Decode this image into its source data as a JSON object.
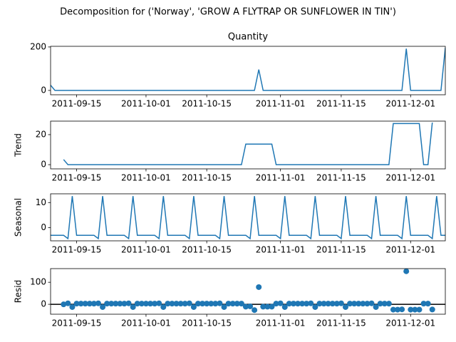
{
  "title": "Decomposition for ('Norway', 'GROW A FLYTRAP OR SUNFLOWER IN TIN')",
  "chart_data": [
    {
      "type": "line",
      "title": "Quantity",
      "color": "#1f77b4",
      "x": [
        "2011-09-09",
        "2011-09-10",
        "2011-09-11",
        "2011-09-12",
        "2011-09-13",
        "2011-09-14",
        "2011-09-15",
        "2011-09-16",
        "2011-09-17",
        "2011-09-18",
        "2011-09-19",
        "2011-09-20",
        "2011-09-21",
        "2011-09-22",
        "2011-09-23",
        "2011-09-24",
        "2011-09-25",
        "2011-09-26",
        "2011-09-27",
        "2011-09-28",
        "2011-09-29",
        "2011-09-30",
        "2011-10-01",
        "2011-10-02",
        "2011-10-03",
        "2011-10-04",
        "2011-10-05",
        "2011-10-06",
        "2011-10-07",
        "2011-10-08",
        "2011-10-09",
        "2011-10-10",
        "2011-10-11",
        "2011-10-12",
        "2011-10-13",
        "2011-10-14",
        "2011-10-15",
        "2011-10-16",
        "2011-10-17",
        "2011-10-18",
        "2011-10-19",
        "2011-10-20",
        "2011-10-21",
        "2011-10-22",
        "2011-10-23",
        "2011-10-24",
        "2011-10-25",
        "2011-10-26",
        "2011-10-27",
        "2011-10-28",
        "2011-10-29",
        "2011-10-30",
        "2011-10-31",
        "2011-11-01",
        "2011-11-02",
        "2011-11-03",
        "2011-11-04",
        "2011-11-05",
        "2011-11-06",
        "2011-11-07",
        "2011-11-08",
        "2011-11-09",
        "2011-11-10",
        "2011-11-11",
        "2011-11-12",
        "2011-11-13",
        "2011-11-14",
        "2011-11-15",
        "2011-11-16",
        "2011-11-17",
        "2011-11-18",
        "2011-11-19",
        "2011-11-20",
        "2011-11-21",
        "2011-11-22",
        "2011-11-23",
        "2011-11-24",
        "2011-11-25",
        "2011-11-26",
        "2011-11-27",
        "2011-11-28",
        "2011-11-29",
        "2011-11-30",
        "2011-12-01",
        "2011-12-02",
        "2011-12-03",
        "2011-12-04",
        "2011-12-05",
        "2011-12-06",
        "2011-12-07",
        "2011-12-08",
        "2011-12-09"
      ],
      "values": [
        24,
        0,
        0,
        0,
        0,
        0,
        0,
        0,
        0,
        0,
        0,
        0,
        0,
        0,
        0,
        0,
        0,
        0,
        0,
        0,
        0,
        0,
        0,
        0,
        0,
        0,
        0,
        0,
        0,
        0,
        0,
        0,
        0,
        0,
        0,
        0,
        0,
        0,
        0,
        0,
        0,
        0,
        0,
        0,
        0,
        0,
        0,
        0,
        96,
        0,
        0,
        0,
        0,
        0,
        0,
        0,
        0,
        0,
        0,
        0,
        0,
        0,
        0,
        0,
        0,
        0,
        0,
        0,
        0,
        0,
        0,
        0,
        0,
        0,
        0,
        0,
        0,
        0,
        0,
        0,
        0,
        0,
        192,
        0,
        0,
        0,
        0,
        0,
        0,
        0,
        0,
        196
      ],
      "xlim": [
        "2011-09-09",
        "2011-12-09"
      ],
      "xticks": [
        "2011-09-15",
        "2011-10-01",
        "2011-10-15",
        "2011-11-01",
        "2011-11-15",
        "2011-12-01"
      ],
      "ylim": [
        -20,
        203
      ],
      "yticks": [
        0,
        200
      ]
    },
    {
      "type": "line",
      "ylabel": "Trend",
      "color": "#1f77b4",
      "x": [
        "2011-09-09",
        "2011-09-10",
        "2011-09-11",
        "2011-09-12",
        "2011-09-13",
        "2011-09-14",
        "2011-09-15",
        "2011-09-16",
        "2011-09-17",
        "2011-09-18",
        "2011-09-19",
        "2011-09-20",
        "2011-09-21",
        "2011-09-22",
        "2011-09-23",
        "2011-09-24",
        "2011-09-25",
        "2011-09-26",
        "2011-09-27",
        "2011-09-28",
        "2011-09-29",
        "2011-09-30",
        "2011-10-01",
        "2011-10-02",
        "2011-10-03",
        "2011-10-04",
        "2011-10-05",
        "2011-10-06",
        "2011-10-07",
        "2011-10-08",
        "2011-10-09",
        "2011-10-10",
        "2011-10-11",
        "2011-10-12",
        "2011-10-13",
        "2011-10-14",
        "2011-10-15",
        "2011-10-16",
        "2011-10-17",
        "2011-10-18",
        "2011-10-19",
        "2011-10-20",
        "2011-10-21",
        "2011-10-22",
        "2011-10-23",
        "2011-10-24",
        "2011-10-25",
        "2011-10-26",
        "2011-10-27",
        "2011-10-28",
        "2011-10-29",
        "2011-10-30",
        "2011-10-31",
        "2011-11-01",
        "2011-11-02",
        "2011-11-03",
        "2011-11-04",
        "2011-11-05",
        "2011-11-06",
        "2011-11-07",
        "2011-11-08",
        "2011-11-09",
        "2011-11-10",
        "2011-11-11",
        "2011-11-12",
        "2011-11-13",
        "2011-11-14",
        "2011-11-15",
        "2011-11-16",
        "2011-11-17",
        "2011-11-18",
        "2011-11-19",
        "2011-11-20",
        "2011-11-21",
        "2011-11-22",
        "2011-11-23",
        "2011-11-24",
        "2011-11-25",
        "2011-11-26",
        "2011-11-27",
        "2011-11-28",
        "2011-11-29",
        "2011-11-30",
        "2011-12-01",
        "2011-12-02",
        "2011-12-03",
        "2011-12-04",
        "2011-12-05",
        "2011-12-06",
        "2011-12-07",
        "2011-12-08",
        "2011-12-09"
      ],
      "values": [
        null,
        null,
        null,
        3.4,
        0,
        0,
        0,
        0,
        0,
        0,
        0,
        0,
        0,
        0,
        0,
        0,
        0,
        0,
        0,
        0,
        0,
        0,
        0,
        0,
        0,
        0,
        0,
        0,
        0,
        0,
        0,
        0,
        0,
        0,
        0,
        0,
        0,
        0,
        0,
        0,
        0,
        0,
        0,
        0,
        0,
        13.7,
        13.7,
        13.7,
        13.7,
        13.7,
        13.7,
        13.7,
        0,
        0,
        0,
        0,
        0,
        0,
        0,
        0,
        0,
        0,
        0,
        0,
        0,
        0,
        0,
        0,
        0,
        0,
        0,
        0,
        0,
        0,
        0,
        0,
        0,
        0,
        0,
        27.4,
        27.4,
        27.4,
        27.4,
        27.4,
        27.4,
        27.4,
        0,
        0,
        28,
        null,
        null,
        null
      ],
      "xlim": [
        "2011-09-09",
        "2011-12-09"
      ],
      "xticks": [
        "2011-09-15",
        "2011-10-01",
        "2011-10-15",
        "2011-11-01",
        "2011-11-15",
        "2011-12-01"
      ],
      "ylim": [
        -2.8,
        29
      ],
      "yticks": [
        0,
        20
      ]
    },
    {
      "type": "line",
      "ylabel": "Seasonal",
      "color": "#1f77b4",
      "x": [
        "2011-09-09",
        "2011-09-10",
        "2011-09-11",
        "2011-09-12",
        "2011-09-13",
        "2011-09-14",
        "2011-09-15",
        "2011-09-16",
        "2011-09-17",
        "2011-09-18",
        "2011-09-19",
        "2011-09-20",
        "2011-09-21",
        "2011-09-22",
        "2011-09-23",
        "2011-09-24",
        "2011-09-25",
        "2011-09-26",
        "2011-09-27",
        "2011-09-28",
        "2011-09-29",
        "2011-09-30",
        "2011-10-01",
        "2011-10-02",
        "2011-10-03",
        "2011-10-04",
        "2011-10-05",
        "2011-10-06",
        "2011-10-07",
        "2011-10-08",
        "2011-10-09",
        "2011-10-10",
        "2011-10-11",
        "2011-10-12",
        "2011-10-13",
        "2011-10-14",
        "2011-10-15",
        "2011-10-16",
        "2011-10-17",
        "2011-10-18",
        "2011-10-19",
        "2011-10-20",
        "2011-10-21",
        "2011-10-22",
        "2011-10-23",
        "2011-10-24",
        "2011-10-25",
        "2011-10-26",
        "2011-10-27",
        "2011-10-28",
        "2011-10-29",
        "2011-10-30",
        "2011-10-31",
        "2011-11-01",
        "2011-11-02",
        "2011-11-03",
        "2011-11-04",
        "2011-11-05",
        "2011-11-06",
        "2011-11-07",
        "2011-11-08",
        "2011-11-09",
        "2011-11-10",
        "2011-11-11",
        "2011-11-12",
        "2011-11-13",
        "2011-11-14",
        "2011-11-15",
        "2011-11-16",
        "2011-11-17",
        "2011-11-18",
        "2011-11-19",
        "2011-11-20",
        "2011-11-21",
        "2011-11-22",
        "2011-11-23",
        "2011-11-24",
        "2011-11-25",
        "2011-11-26",
        "2011-11-27",
        "2011-11-28",
        "2011-11-29",
        "2011-11-30",
        "2011-12-01",
        "2011-12-02",
        "2011-12-03",
        "2011-12-04",
        "2011-12-05",
        "2011-12-06",
        "2011-12-07",
        "2011-12-08",
        "2011-12-09"
      ],
      "values": [
        -3.1,
        -3.1,
        -3.1,
        -3.1,
        -4.4,
        12.6,
        -3.1,
        -3.1,
        -3.1,
        -3.1,
        -3.1,
        -4.4,
        12.6,
        -3.1,
        -3.1,
        -3.1,
        -3.1,
        -3.1,
        -4.4,
        12.6,
        -3.1,
        -3.1,
        -3.1,
        -3.1,
        -3.1,
        -4.4,
        12.6,
        -3.1,
        -3.1,
        -3.1,
        -3.1,
        -3.1,
        -4.4,
        12.6,
        -3.1,
        -3.1,
        -3.1,
        -3.1,
        -3.1,
        -4.4,
        12.6,
        -3.1,
        -3.1,
        -3.1,
        -3.1,
        -3.1,
        -4.4,
        12.6,
        -3.1,
        -3.1,
        -3.1,
        -3.1,
        -3.1,
        -4.4,
        12.6,
        -3.1,
        -3.1,
        -3.1,
        -3.1,
        -3.1,
        -4.4,
        12.6,
        -3.1,
        -3.1,
        -3.1,
        -3.1,
        -3.1,
        -4.4,
        12.6,
        -3.1,
        -3.1,
        -3.1,
        -3.1,
        -3.1,
        -4.4,
        12.6,
        -3.1,
        -3.1,
        -3.1,
        -3.1,
        -3.1,
        -4.4,
        12.6,
        -3.1,
        -3.1,
        -3.1,
        -3.1,
        -3.1,
        -4.4,
        12.6,
        -3.1,
        -3.1
      ],
      "xlim": [
        "2011-09-09",
        "2011-12-09"
      ],
      "xticks": [
        "2011-09-15",
        "2011-10-01",
        "2011-10-15",
        "2011-11-01",
        "2011-11-15",
        "2011-12-01"
      ],
      "ylim": [
        -5.3,
        13.5
      ],
      "yticks": [
        0,
        10
      ]
    },
    {
      "type": "scatter",
      "ylabel": "Resid",
      "color": "#1f77b4",
      "hline": 0,
      "x": [
        "2011-09-09",
        "2011-09-10",
        "2011-09-11",
        "2011-09-12",
        "2011-09-13",
        "2011-09-14",
        "2011-09-15",
        "2011-09-16",
        "2011-09-17",
        "2011-09-18",
        "2011-09-19",
        "2011-09-20",
        "2011-09-21",
        "2011-09-22",
        "2011-09-23",
        "2011-09-24",
        "2011-09-25",
        "2011-09-26",
        "2011-09-27",
        "2011-09-28",
        "2011-09-29",
        "2011-09-30",
        "2011-10-01",
        "2011-10-02",
        "2011-10-03",
        "2011-10-04",
        "2011-10-05",
        "2011-10-06",
        "2011-10-07",
        "2011-10-08",
        "2011-10-09",
        "2011-10-10",
        "2011-10-11",
        "2011-10-12",
        "2011-10-13",
        "2011-10-14",
        "2011-10-15",
        "2011-10-16",
        "2011-10-17",
        "2011-10-18",
        "2011-10-19",
        "2011-10-20",
        "2011-10-21",
        "2011-10-22",
        "2011-10-23",
        "2011-10-24",
        "2011-10-25",
        "2011-10-26",
        "2011-10-27",
        "2011-10-28",
        "2011-10-29",
        "2011-10-30",
        "2011-10-31",
        "2011-11-01",
        "2011-11-02",
        "2011-11-03",
        "2011-11-04",
        "2011-11-05",
        "2011-11-06",
        "2011-11-07",
        "2011-11-08",
        "2011-11-09",
        "2011-11-10",
        "2011-11-11",
        "2011-11-12",
        "2011-11-13",
        "2011-11-14",
        "2011-11-15",
        "2011-11-16",
        "2011-11-17",
        "2011-11-18",
        "2011-11-19",
        "2011-11-20",
        "2011-11-21",
        "2011-11-22",
        "2011-11-23",
        "2011-11-24",
        "2011-11-25",
        "2011-11-26",
        "2011-11-27",
        "2011-11-28",
        "2011-11-29",
        "2011-11-30",
        "2011-12-01",
        "2011-12-02",
        "2011-12-03",
        "2011-12-04",
        "2011-12-05",
        "2011-12-06",
        "2011-12-07",
        "2011-12-08",
        "2011-12-09"
      ],
      "values": [
        null,
        null,
        null,
        -0.3,
        4.4,
        -12.6,
        3.1,
        3.1,
        3.1,
        3.1,
        3.1,
        4.4,
        -12.6,
        3.1,
        3.1,
        3.1,
        3.1,
        3.1,
        4.4,
        -12.6,
        3.1,
        3.1,
        3.1,
        3.1,
        3.1,
        4.4,
        -12.6,
        3.1,
        3.1,
        3.1,
        3.1,
        3.1,
        4.4,
        -12.6,
        3.1,
        3.1,
        3.1,
        3.1,
        3.1,
        4.4,
        -12.6,
        3.1,
        3.1,
        3.1,
        3.1,
        -10.6,
        -9.3,
        -26.3,
        78,
        -10.6,
        -10.6,
        -10.6,
        3.1,
        4.4,
        -12.6,
        3.1,
        3.1,
        3.1,
        3.1,
        3.1,
        4.4,
        -12.6,
        3.1,
        3.1,
        3.1,
        3.1,
        3.1,
        4.4,
        -12.6,
        3.1,
        3.1,
        3.1,
        3.1,
        3.1,
        4.4,
        -12.6,
        3.1,
        3.1,
        3.1,
        -24.3,
        -24.3,
        -23.0,
        150,
        -24.3,
        -24.3,
        -24.3,
        3.1,
        3.1,
        -23.6,
        null,
        null,
        null
      ],
      "xlim": [
        "2011-09-09",
        "2011-12-09"
      ],
      "xticks": [
        "2011-09-15",
        "2011-10-01",
        "2011-10-15",
        "2011-11-01",
        "2011-11-15",
        "2011-12-01"
      ],
      "ylim": [
        -45,
        162
      ],
      "yticks": [
        0,
        100
      ]
    }
  ]
}
